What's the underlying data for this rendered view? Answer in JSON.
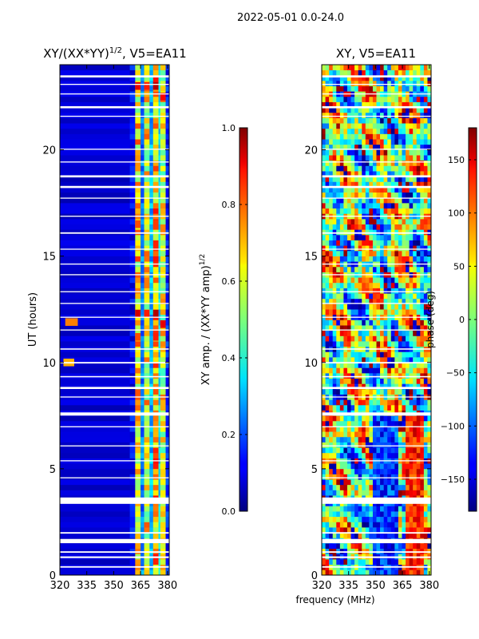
{
  "chart_data": {
    "suptitle": "2022-05-01 0.0-24.0",
    "xlabel": "frequency (MHz)",
    "ylabel": "UT (hours)",
    "xlim": [
      320,
      381
    ],
    "ylim": [
      0,
      24
    ],
    "xticks": [
      320,
      335,
      350,
      365,
      380
    ],
    "yticks": [
      0,
      5,
      10,
      15,
      20
    ],
    "panels": [
      {
        "type": "heatmap",
        "title_main": "XY/(XX*YY)",
        "title_sup": "1/2",
        "title_rest": ", V5=EA11",
        "colorbar": {
          "label": "XY amp. / (XX*YY amp)",
          "label_sup": "1/2",
          "range": [
            0.0,
            1.0
          ],
          "ticks": [
            0.0,
            0.2,
            0.4,
            0.6,
            0.8,
            1.0
          ],
          "tick_labels": [
            "0.0",
            "0.2",
            "0.4",
            "0.6",
            "0.8",
            "1.0"
          ]
        },
        "bands": [
          {
            "from_mhz": 320,
            "to_mhz": 359,
            "level": 0.05
          },
          {
            "from_mhz": 359,
            "to_mhz": 362,
            "level": 0.12
          },
          {
            "from_mhz": 362,
            "to_mhz": 365,
            "level": 0.65
          },
          {
            "from_mhz": 365,
            "to_mhz": 367,
            "level": 0.25
          },
          {
            "from_mhz": 367,
            "to_mhz": 370,
            "level": 0.62
          },
          {
            "from_mhz": 370,
            "to_mhz": 372,
            "level": 0.3
          },
          {
            "from_mhz": 372,
            "to_mhz": 375,
            "level": 0.7
          },
          {
            "from_mhz": 375,
            "to_mhz": 376,
            "level": 0.35
          },
          {
            "from_mhz": 376,
            "to_mhz": 379,
            "level": 0.6
          },
          {
            "from_mhz": 379,
            "to_mhz": 381,
            "level": 0.15
          }
        ],
        "hot_spots": [
          {
            "t": 23.0,
            "f1": 362,
            "f2": 365,
            "level": 0.9
          },
          {
            "t": 23.0,
            "f1": 367,
            "f2": 370,
            "level": 0.85
          },
          {
            "t": 23.0,
            "f1": 372,
            "f2": 375,
            "level": 0.95
          },
          {
            "t": 22.5,
            "f1": 376,
            "f2": 379,
            "level": 0.88
          },
          {
            "t": 16.5,
            "f1": 362,
            "f2": 365,
            "level": 0.8
          },
          {
            "t": 16.5,
            "f1": 372,
            "f2": 375,
            "level": 0.82
          },
          {
            "t": 12.3,
            "f1": 362,
            "f2": 365,
            "level": 0.92
          },
          {
            "t": 12.3,
            "f1": 367,
            "f2": 370,
            "level": 0.85
          },
          {
            "t": 12.3,
            "f1": 372,
            "f2": 375,
            "level": 0.95
          },
          {
            "t": 11.8,
            "f1": 376,
            "f2": 379,
            "level": 0.9
          },
          {
            "t": 11.2,
            "f1": 362,
            "f2": 365,
            "level": 0.8
          },
          {
            "t": 11.2,
            "f1": 372,
            "f2": 375,
            "level": 0.85
          },
          {
            "t": 11.9,
            "f1": 323,
            "f2": 330,
            "level": 0.75
          },
          {
            "t": 10.0,
            "f1": 322,
            "f2": 328,
            "level": 0.7
          }
        ]
      },
      {
        "type": "heatmap",
        "title": "XY, V5=EA11",
        "colorbar": {
          "label": "phase (deg)",
          "range": [
            -180,
            180
          ],
          "ticks": [
            -150,
            -100,
            -50,
            0,
            50,
            100,
            150
          ],
          "tick_labels": [
            "−150",
            "−100",
            "−50",
            "0",
            "50",
            "100",
            "150"
          ]
        }
      }
    ],
    "flagged_gaps_ut_hours": [
      [
        0.35,
        0.42
      ],
      [
        0.8,
        0.88
      ],
      [
        1.05,
        1.12
      ],
      [
        1.5,
        1.7
      ],
      [
        1.95,
        2.02
      ],
      [
        3.35,
        3.65
      ],
      [
        4.55,
        4.6
      ],
      [
        5.35,
        5.4
      ],
      [
        6.05,
        6.1
      ],
      [
        6.95,
        7.0
      ],
      [
        7.5,
        7.65
      ],
      [
        8.35,
        8.4
      ],
      [
        8.75,
        8.85
      ],
      [
        9.3,
        9.36
      ],
      [
        9.95,
        10.02
      ],
      [
        10.6,
        10.66
      ],
      [
        11.5,
        11.55
      ],
      [
        12.1,
        12.15
      ],
      [
        12.75,
        12.8
      ],
      [
        13.3,
        13.35
      ],
      [
        14.1,
        14.15
      ],
      [
        14.6,
        14.65
      ],
      [
        15.3,
        15.35
      ],
      [
        16.05,
        16.12
      ],
      [
        16.85,
        16.9
      ],
      [
        17.7,
        17.75
      ],
      [
        18.2,
        18.3
      ],
      [
        18.7,
        18.8
      ],
      [
        19.4,
        19.45
      ],
      [
        20.0,
        20.05
      ],
      [
        21.55,
        21.6
      ],
      [
        21.95,
        22.05
      ],
      [
        22.6,
        22.65
      ],
      [
        23.05,
        23.1
      ],
      [
        23.4,
        23.5
      ]
    ]
  }
}
